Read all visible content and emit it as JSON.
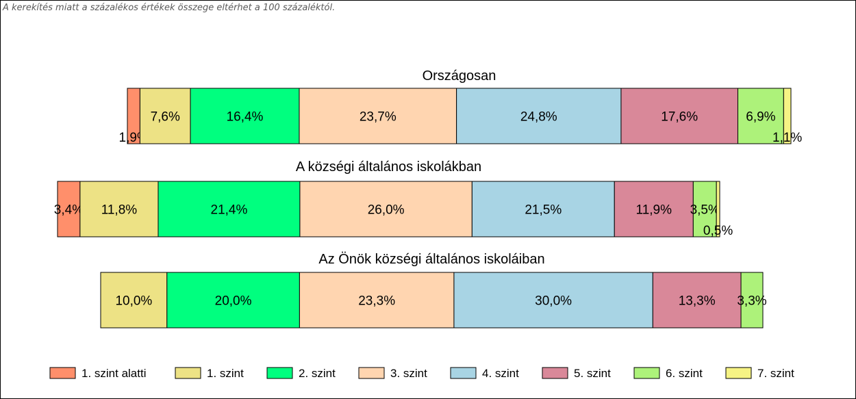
{
  "note": "A kerekítés miatt a  százalékos értékek összege eltérhet a 100 százaléktól.",
  "chart_data": {
    "type": "bar",
    "orientation": "horizontal-stacked-100",
    "legend_position": "bottom",
    "series": [
      {
        "name": "1. szint alatti",
        "color": "#FF8F6B"
      },
      {
        "name": "1. szint",
        "color": "#EDE285"
      },
      {
        "name": "2. szint",
        "color": "#00FF7F"
      },
      {
        "name": "3. szint",
        "color": "#FFD5B0"
      },
      {
        "name": "4. szint",
        "color": "#A8D4E4"
      },
      {
        "name": "5. szint",
        "color": "#D98899"
      },
      {
        "name": "6. szint",
        "color": "#ADF27A"
      },
      {
        "name": "7. szint",
        "color": "#F6F384"
      }
    ],
    "bars": [
      {
        "title": "Országosan",
        "values": [
          1.9,
          7.6,
          16.4,
          23.7,
          24.8,
          17.6,
          6.9,
          1.1
        ],
        "labels": [
          "1,9%",
          "7,6%",
          "16,4%",
          "23,7%",
          "24,8%",
          "17,6%",
          "6,9%",
          "1,1%"
        ]
      },
      {
        "title": "A községi általános iskolákban",
        "values": [
          3.4,
          11.8,
          21.4,
          26.0,
          21.5,
          11.9,
          3.5,
          0.5
        ],
        "labels": [
          "3,4%",
          "11,8%",
          "21,4%",
          "26,0%",
          "21,5%",
          "11,9%",
          "3,5%",
          "0,5%"
        ]
      },
      {
        "title": "Az Önök községi általános iskoláiban",
        "values": [
          0,
          10.0,
          20.0,
          23.3,
          30.0,
          13.3,
          3.3,
          0
        ],
        "labels": [
          "",
          "10,0%",
          "20,0%",
          "23,3%",
          "30,0%",
          "13,3%",
          "3,3%",
          ""
        ]
      }
    ]
  }
}
